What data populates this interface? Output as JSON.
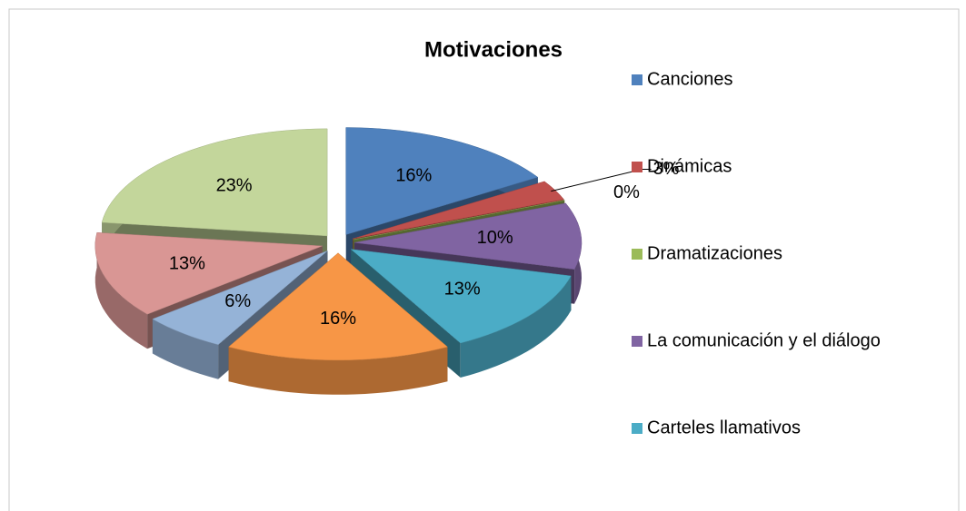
{
  "chart_data": {
    "type": "pie3d",
    "title": "Motivaciones",
    "categories": [
      "Canciones",
      "Dinámicas",
      "Dramatizaciones",
      "La comunicación y el diálogo",
      "Carteles llamativos",
      null,
      null,
      null,
      null
    ],
    "values": [
      16,
      3,
      0,
      10,
      13,
      16,
      6,
      13,
      23
    ],
    "value_labels": [
      "16%",
      "3%",
      "0%",
      "10%",
      "13%",
      "16%",
      "6%",
      "13%",
      "23%"
    ],
    "colors": [
      "#4f81bd",
      "#c0504d",
      "#9bbb59",
      "#8064a2",
      "#4bacc6",
      "#f79646",
      "#95b3d7",
      "#d99694",
      "#c3d69b"
    ]
  }
}
